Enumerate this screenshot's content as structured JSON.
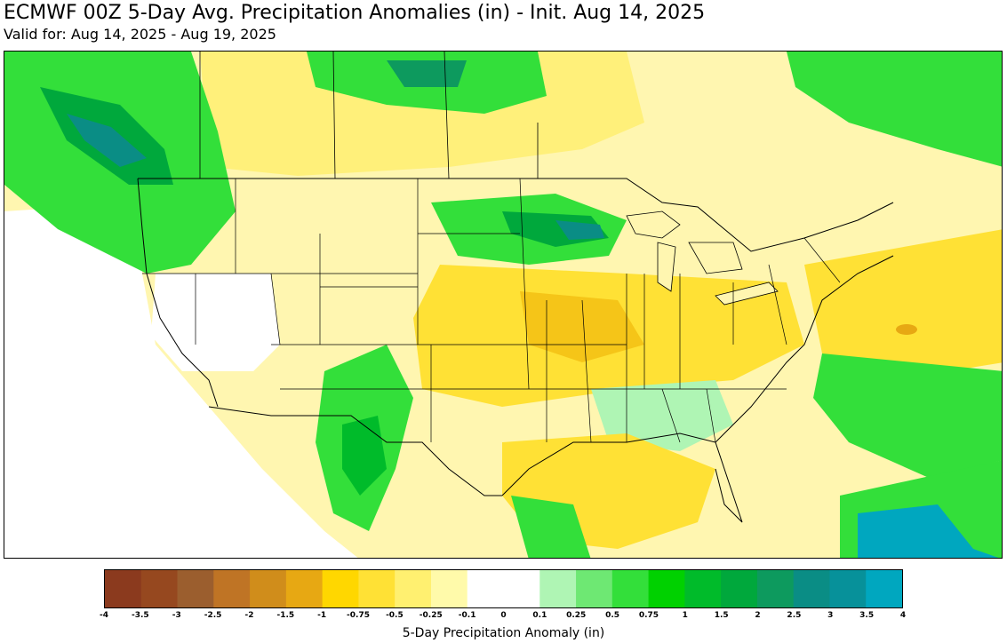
{
  "header": {
    "title": "ECMWF 00Z 5-Day Avg. Precipitation Anomalies (in) - Init. Aug 14, 2025",
    "subtitle": "Valid for: Aug 14, 2025 - Aug 19, 2025"
  },
  "colorbar": {
    "label": "5-Day Precipitation Anomaly (in)",
    "ticks": [
      "-4",
      "-3.5",
      "-3",
      "-2.5",
      "-2",
      "-1.5",
      "-1",
      "-0.75",
      "-0.5",
      "-0.25",
      "-0.1",
      "0",
      "0.1",
      "0.25",
      "0.5",
      "0.75",
      "1",
      "1.5",
      "2",
      "2.5",
      "3",
      "3.5",
      "4"
    ],
    "colors": [
      "#8b3a1e",
      "#96481f",
      "#9b5e2e",
      "#bf7425",
      "#d08d1b",
      "#e7a813",
      "#ffd700",
      "#ffe135",
      "#fff070",
      "#fffaaa",
      "#ffffff",
      "#ffffff",
      "#aff5b4",
      "#6ee873",
      "#33df3a",
      "#00d100",
      "#00bb2a",
      "#00a83c",
      "#0d9a5e",
      "#0a8d85",
      "#07919a",
      "#00a7bf"
    ]
  },
  "map": {
    "colors": {
      "background": "#fffbe0",
      "dry_light": "#fff3a0",
      "dry_medium": "#ffe135",
      "dry_strong": "#f5c518",
      "dry_deep": "#e7a813",
      "wet_light": "#aff5b4",
      "wet_medium": "#33df3a",
      "wet_strong": "#00bb2a",
      "wet_deep": "#0a8d85",
      "wet_max": "#00a7bf",
      "neutral": "#ffffff",
      "border": "#000000"
    }
  }
}
